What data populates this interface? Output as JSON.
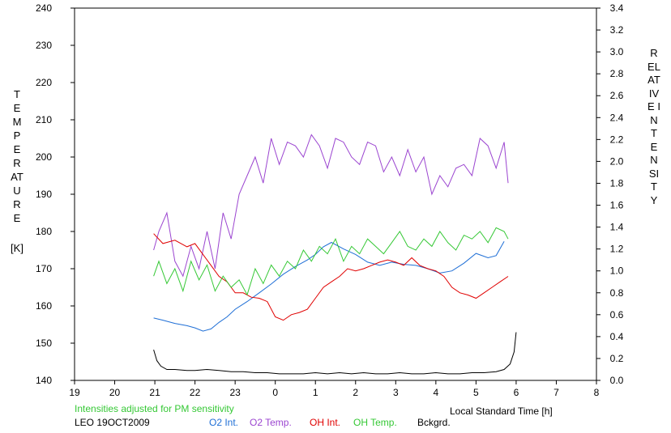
{
  "chart_data": {
    "type": "line",
    "title": "",
    "ylabel_left": "TEMPERATURE",
    "ylabel_left_unit": "[K]",
    "ylabel_right": "RELATIVE INTENSITY",
    "xlabel": "Local Standard Time [h]",
    "note": "Intensities adjusted for PM sensitivity",
    "site_date": "LEO 19OCT2009",
    "x_ticks": [
      "19",
      "20",
      "21",
      "22",
      "23",
      "0",
      "1",
      "2",
      "3",
      "4",
      "5",
      "6",
      "7",
      "8"
    ],
    "y_left_ticks": [
      "140",
      "150",
      "160",
      "170",
      "180",
      "190",
      "200",
      "210",
      "220",
      "230",
      "240"
    ],
    "y_right_ticks": [
      "0.0",
      "0.2",
      "0.4",
      "0.6",
      "0.8",
      "1.0",
      "1.2",
      "1.4",
      "1.6",
      "1.8",
      "2.0",
      "2.2",
      "2.4",
      "2.6",
      "2.8",
      "3.0",
      "3.2",
      "3.4"
    ],
    "xlim": [
      19,
      32
    ],
    "ylim_left": [
      140,
      240
    ],
    "ylim_right": [
      0,
      3.4
    ],
    "grid": false,
    "series": [
      {
        "name": "O2 Int.",
        "axis": "right",
        "color": "#1f6fd6",
        "x": [
          20.97,
          21.2,
          21.5,
          21.8,
          22.0,
          22.2,
          22.4,
          22.6,
          22.8,
          23.0,
          23.3,
          23.6,
          23.9,
          24.2,
          24.5,
          24.8,
          25.0,
          25.2,
          25.4,
          25.7,
          26.0,
          26.3,
          26.6,
          26.9,
          27.2,
          27.5,
          27.8,
          28.1,
          28.4,
          28.7,
          29.0,
          29.3,
          29.5,
          29.7
        ],
        "y": [
          0.57,
          0.55,
          0.52,
          0.5,
          0.48,
          0.45,
          0.47,
          0.53,
          0.58,
          0.65,
          0.72,
          0.8,
          0.88,
          0.97,
          1.04,
          1.1,
          1.15,
          1.22,
          1.26,
          1.2,
          1.15,
          1.08,
          1.05,
          1.08,
          1.06,
          1.05,
          1.02,
          0.98,
          1.0,
          1.07,
          1.16,
          1.12,
          1.14,
          1.27
        ]
      },
      {
        "name": "O2 Temp.",
        "axis": "left",
        "color": "#9b45d0",
        "x": [
          20.97,
          21.1,
          21.3,
          21.5,
          21.7,
          21.9,
          22.1,
          22.3,
          22.5,
          22.7,
          22.9,
          23.1,
          23.3,
          23.5,
          23.7,
          23.9,
          24.1,
          24.3,
          24.5,
          24.7,
          24.9,
          25.1,
          25.3,
          25.5,
          25.7,
          25.9,
          26.1,
          26.3,
          26.5,
          26.7,
          26.9,
          27.1,
          27.3,
          27.5,
          27.7,
          27.9,
          28.1,
          28.3,
          28.5,
          28.7,
          28.9,
          29.1,
          29.3,
          29.5,
          29.7,
          29.8
        ],
        "y": [
          175,
          180,
          185,
          172,
          168,
          176,
          170,
          180,
          170,
          185,
          178,
          190,
          195,
          200,
          193,
          205,
          198,
          204,
          203,
          200,
          206,
          203,
          197,
          205,
          204,
          200,
          198,
          204,
          203,
          196,
          200,
          195,
          202,
          196,
          200,
          190,
          195,
          192,
          197,
          198,
          195,
          205,
          203,
          197,
          204,
          193
        ]
      },
      {
        "name": "OH Int.",
        "axis": "right",
        "color": "#e00000",
        "x": [
          20.97,
          21.2,
          21.5,
          21.8,
          22.0,
          22.2,
          22.4,
          22.6,
          22.8,
          23.0,
          23.2,
          23.4,
          23.6,
          23.8,
          24.0,
          24.2,
          24.4,
          24.6,
          24.8,
          25.0,
          25.2,
          25.4,
          25.6,
          25.8,
          26.0,
          26.2,
          26.4,
          26.6,
          26.8,
          27.0,
          27.2,
          27.4,
          27.6,
          27.8,
          28.0,
          28.2,
          28.4,
          28.6,
          28.8,
          29.0,
          29.2,
          29.4,
          29.6,
          29.8
        ],
        "y": [
          1.34,
          1.25,
          1.28,
          1.22,
          1.25,
          1.15,
          1.05,
          0.95,
          0.9,
          0.8,
          0.8,
          0.76,
          0.75,
          0.72,
          0.58,
          0.55,
          0.6,
          0.62,
          0.65,
          0.75,
          0.85,
          0.9,
          0.95,
          1.02,
          1.0,
          1.02,
          1.05,
          1.08,
          1.1,
          1.08,
          1.05,
          1.12,
          1.05,
          1.02,
          1.0,
          0.95,
          0.85,
          0.8,
          0.78,
          0.75,
          0.8,
          0.85,
          0.9,
          0.95
        ]
      },
      {
        "name": "OH Temp.",
        "axis": "left",
        "color": "#35c835",
        "x": [
          20.97,
          21.1,
          21.3,
          21.5,
          21.7,
          21.9,
          22.1,
          22.3,
          22.5,
          22.7,
          22.9,
          23.1,
          23.3,
          23.5,
          23.7,
          23.9,
          24.1,
          24.3,
          24.5,
          24.7,
          24.9,
          25.1,
          25.3,
          25.5,
          25.7,
          25.9,
          26.1,
          26.3,
          26.5,
          26.7,
          26.9,
          27.1,
          27.3,
          27.5,
          27.7,
          27.9,
          28.1,
          28.3,
          28.5,
          28.7,
          28.9,
          29.1,
          29.3,
          29.5,
          29.7,
          29.8
        ],
        "y": [
          168,
          172,
          166,
          170,
          164,
          172,
          167,
          171,
          164,
          168,
          165,
          167,
          163,
          170,
          166,
          171,
          168,
          172,
          170,
          175,
          172,
          176,
          174,
          178,
          172,
          176,
          174,
          178,
          176,
          174,
          177,
          180,
          176,
          175,
          178,
          176,
          180,
          177,
          175,
          179,
          178,
          180,
          177,
          181,
          180,
          178
        ]
      },
      {
        "name": "Bckgrd.",
        "axis": "right",
        "color": "#000000",
        "x": [
          20.97,
          21.05,
          21.15,
          21.3,
          21.5,
          21.8,
          22.0,
          22.3,
          22.6,
          22.9,
          23.2,
          23.5,
          23.8,
          24.1,
          24.4,
          24.7,
          25.0,
          25.3,
          25.6,
          25.9,
          26.2,
          26.5,
          26.8,
          27.1,
          27.4,
          27.7,
          28.0,
          28.3,
          28.6,
          28.9,
          29.2,
          29.5,
          29.7,
          29.85,
          29.95,
          30.0
        ],
        "y": [
          0.28,
          0.18,
          0.13,
          0.1,
          0.1,
          0.09,
          0.09,
          0.1,
          0.09,
          0.08,
          0.08,
          0.07,
          0.07,
          0.06,
          0.06,
          0.06,
          0.07,
          0.06,
          0.07,
          0.06,
          0.07,
          0.06,
          0.06,
          0.07,
          0.06,
          0.06,
          0.07,
          0.06,
          0.06,
          0.07,
          0.07,
          0.08,
          0.1,
          0.15,
          0.26,
          0.44
        ]
      }
    ]
  }
}
